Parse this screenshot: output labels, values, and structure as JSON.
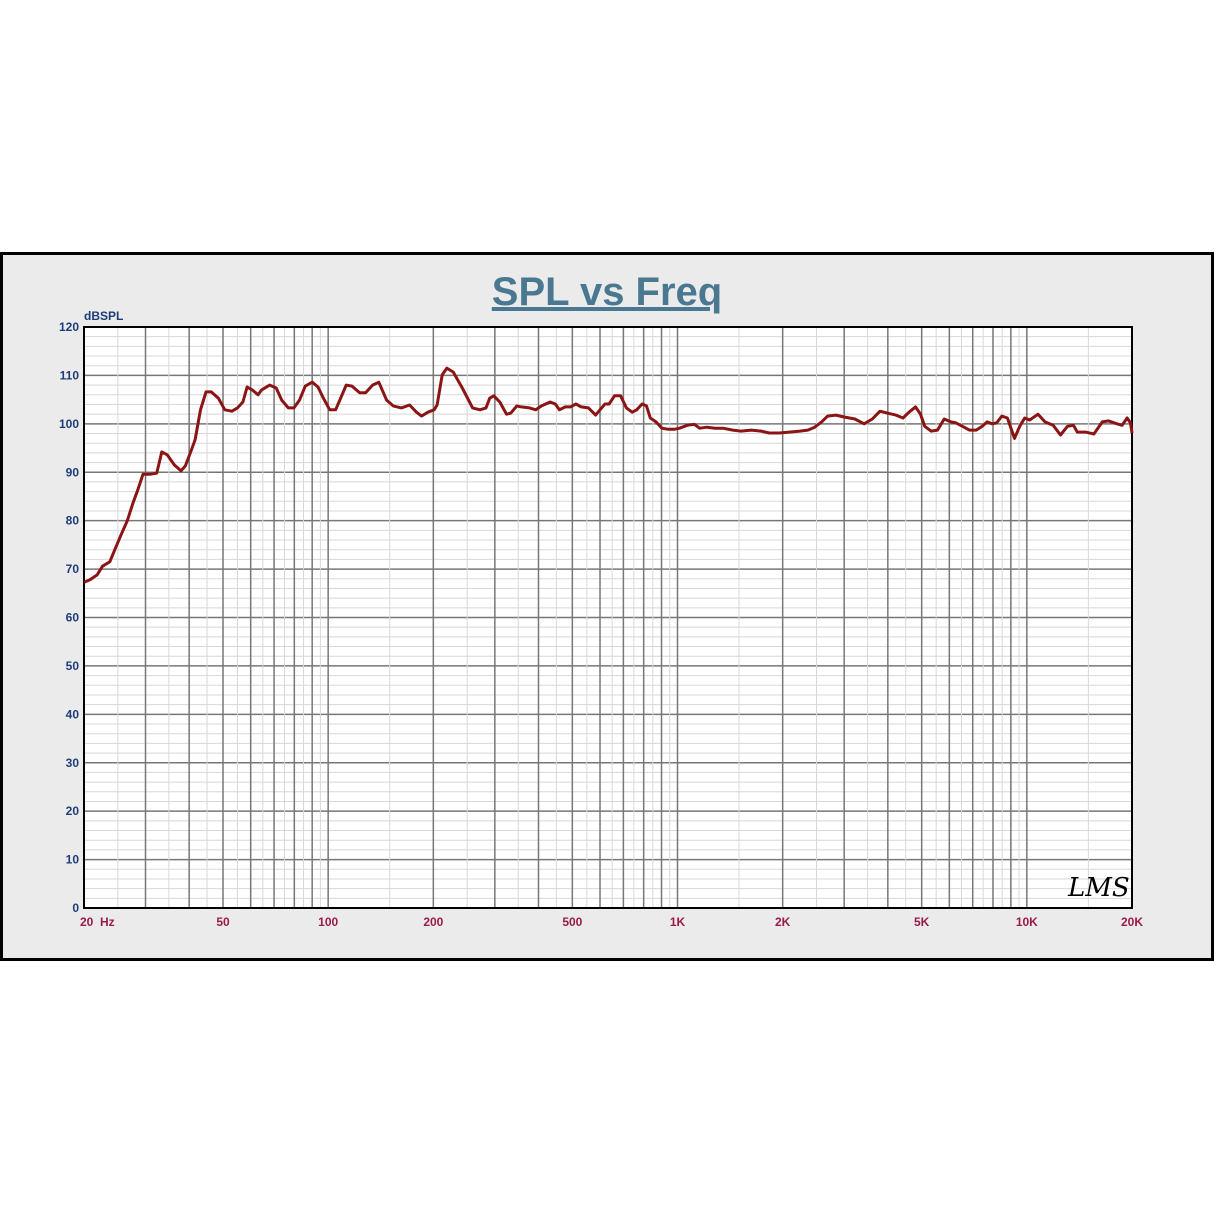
{
  "chart_data": {
    "type": "line",
    "title": "SPL vs Freq",
    "ylabel": "dBSPL",
    "xlabel": "",
    "x_scale": "log",
    "xlim": [
      20,
      20000
    ],
    "ylim": [
      0,
      120
    ],
    "grid": true,
    "y_ticks": [
      "0",
      "10",
      "20",
      "30",
      "40",
      "50",
      "60",
      "70",
      "80",
      "90",
      "100",
      "110",
      "120"
    ],
    "x_ticks": [
      {
        "value": 20,
        "label": "20  Hz"
      },
      {
        "value": 50,
        "label": "50"
      },
      {
        "value": 100,
        "label": "100"
      },
      {
        "value": 200,
        "label": "200"
      },
      {
        "value": 500,
        "label": "500"
      },
      {
        "value": 1000,
        "label": "1K"
      },
      {
        "value": 2000,
        "label": "2K"
      },
      {
        "value": 5000,
        "label": "5K"
      },
      {
        "value": 10000,
        "label": "10K"
      },
      {
        "value": 20000,
        "label": "20K"
      }
    ],
    "logo": "LMS",
    "colors": {
      "line": "#8b1414",
      "title": "#4a7891",
      "y_ticks": "#1e3c78",
      "x_ticks": "#9a1a4c",
      "frame_bg": "#ebebeb"
    },
    "series": [
      {
        "x": [
          20,
          20.8,
          21.8,
          22.6,
          23.7,
          24.5,
          25.5,
          26.6,
          27.6,
          28.5,
          29.5,
          31,
          32.3,
          33.4,
          34.6,
          36.3,
          37.9,
          39,
          40.6,
          41.6,
          43.1,
          44.7,
          46.3,
          48.5,
          50.6,
          53,
          55,
          57,
          58.6,
          60.6,
          63,
          64.5,
          68,
          71,
          73.6,
          76.9,
          79.8,
          82.8,
          86,
          90,
          93.5,
          96.9,
          101,
          105,
          108,
          112.6,
          117,
          123,
          128,
          134,
          139.6,
          147,
          153.5,
          162,
          171,
          179,
          185,
          193,
          201,
          205,
          212,
          218.6,
          228,
          242,
          259,
          272,
          283,
          290,
          298,
          310,
          324,
          333,
          347,
          357,
          377,
          393,
          408,
          432,
          447,
          459,
          477,
          494,
          512,
          530,
          556,
          583,
          600,
          620,
          637,
          660,
          687,
          714,
          742,
          764,
          792,
          815,
          836,
          868,
          902,
          937,
          982,
          1013,
          1067,
          1118,
          1157,
          1215,
          1280,
          1348,
          1440,
          1520,
          1625,
          1735,
          1830,
          1955,
          2090,
          2240,
          2360,
          2470,
          2585,
          2690,
          2840,
          3010,
          3220,
          3420,
          3610,
          3800,
          4000,
          4220,
          4420,
          4600,
          4800,
          4960,
          5100,
          5320,
          5550,
          5800,
          6060,
          6270,
          6540,
          6850,
          7160,
          7450,
          7700,
          7950,
          8200,
          8480,
          8800,
          9220,
          9540,
          9860,
          10190,
          10760,
          11270,
          11900,
          12480,
          13070,
          13600,
          13950,
          14730,
          15560,
          16440,
          17140,
          18110,
          18740,
          19370,
          19800,
          20000
        ],
        "y": [
          67.3,
          67.8,
          68.8,
          70.6,
          71.5,
          74,
          77,
          80,
          83.6,
          86.3,
          89.6,
          89.6,
          89.8,
          94.2,
          93.6,
          91.5,
          90.3,
          91.3,
          94.6,
          96.7,
          102.9,
          106.6,
          106.6,
          105.3,
          102.9,
          102.6,
          103.3,
          104.5,
          107.6,
          107,
          106,
          107,
          108,
          107.4,
          104.9,
          103.3,
          103.3,
          104.9,
          107.8,
          108.6,
          107.6,
          105.3,
          102.9,
          102.9,
          104.9,
          108,
          107.8,
          106.4,
          106.4,
          108,
          108.6,
          104.9,
          103.7,
          103.3,
          103.9,
          102.4,
          101.6,
          102.4,
          102.9,
          103.9,
          110.1,
          111.5,
          110.7,
          107.4,
          103.3,
          102.9,
          103.3,
          105.3,
          105.8,
          104.5,
          102,
          102.2,
          103.7,
          103.5,
          103.3,
          102.9,
          103.7,
          104.5,
          104.1,
          102.9,
          103.5,
          103.5,
          104.1,
          103.5,
          103.3,
          101.8,
          102.9,
          104.1,
          104.1,
          105.8,
          105.8,
          103.3,
          102.4,
          102.9,
          104.1,
          103.7,
          101.2,
          100.4,
          99.1,
          98.9,
          98.9,
          99.1,
          99.7,
          99.9,
          99.1,
          99.3,
          99.1,
          99.1,
          98.7,
          98.5,
          98.7,
          98.5,
          98.1,
          98.1,
          98.3,
          98.5,
          98.7,
          99.3,
          100.4,
          101.6,
          101.8,
          101.4,
          101,
          100,
          101,
          102.6,
          102.2,
          101.8,
          101.2,
          102.4,
          103.5,
          102,
          99.5,
          98.5,
          98.7,
          101,
          100.4,
          100.2,
          99.5,
          98.7,
          98.7,
          99.5,
          100.4,
          100,
          100.2,
          101.6,
          101.2,
          97,
          99.5,
          101.2,
          100.8,
          102,
          100.4,
          99.7,
          97.7,
          99.5,
          99.7,
          98.3,
          98.3,
          97.9,
          100.4,
          100.6,
          100,
          99.7,
          101.2,
          100.2,
          98.1
        ]
      }
    ]
  }
}
